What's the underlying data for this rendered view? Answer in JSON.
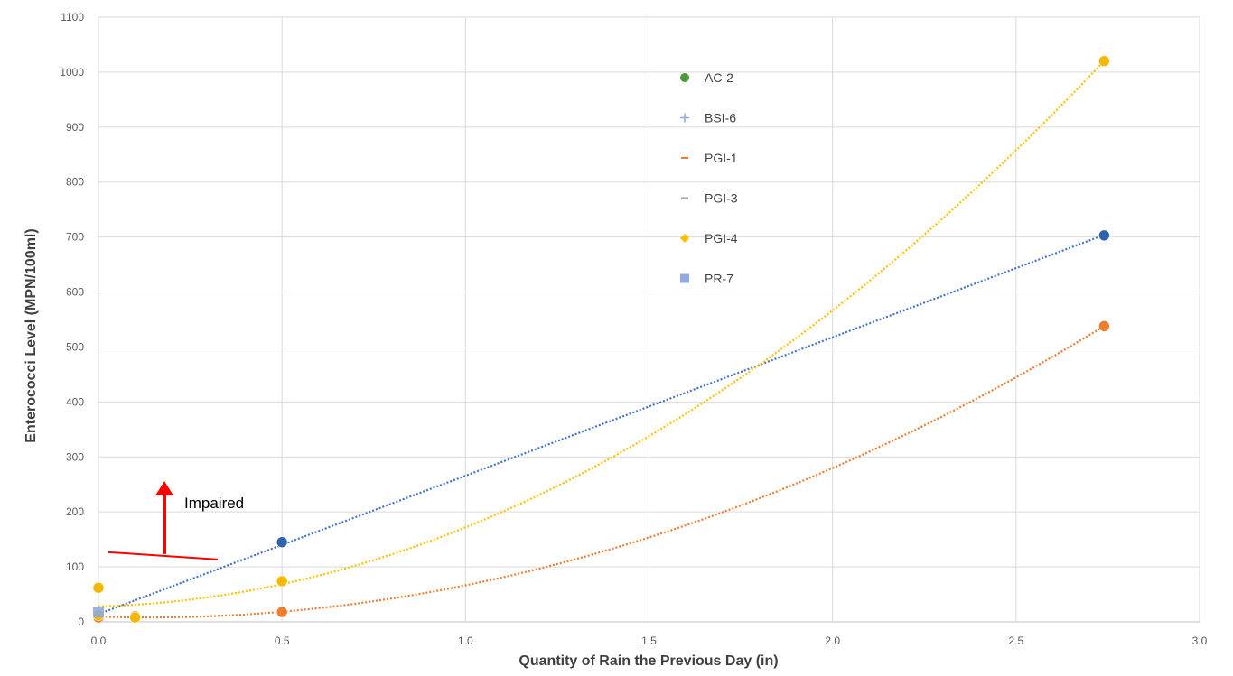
{
  "chart_data": {
    "type": "scatter",
    "xlabel": "Quantity of Rain the Previous Day (in)",
    "ylabel": "Enterococci Level (MPN/100ml)",
    "xlim": [
      0,
      3.0
    ],
    "ylim": [
      0,
      1100
    ],
    "x_ticks": [
      "0.0",
      "0.5",
      "1.0",
      "1.5",
      "2.0",
      "2.5",
      "3.0"
    ],
    "x_tick_values": [
      0,
      0.5,
      1.0,
      1.5,
      2.0,
      2.5,
      3.0
    ],
    "y_ticks": [
      "0",
      "100",
      "200",
      "300",
      "400",
      "500",
      "600",
      "700",
      "800",
      "900",
      "1000",
      "1100"
    ],
    "y_tick_values": [
      0,
      100,
      200,
      300,
      400,
      500,
      600,
      700,
      800,
      900,
      1000,
      1100
    ],
    "grid": true,
    "legend_position": "top-center",
    "series": [
      {
        "name": "AC-2",
        "marker": "circle",
        "color": "#4e9a3a",
        "points": []
      },
      {
        "name": "BSI-6",
        "marker": "plus",
        "color": "#8faadc",
        "points": [
          [
            0.0,
            10
          ],
          [
            0.5,
            145
          ],
          [
            2.74,
            703
          ]
        ],
        "point_color": "#2e64ad",
        "trend": {
          "kind": "linear",
          "color": "#4472c4"
        }
      },
      {
        "name": "PGI-1",
        "marker": "dash",
        "color": "#ed7d31",
        "points": [
          [
            0.0,
            8
          ],
          [
            0.1,
            10
          ],
          [
            0.5,
            18
          ],
          [
            2.74,
            538
          ]
        ],
        "trend": {
          "kind": "poly2",
          "color": "#ed7d31"
        }
      },
      {
        "name": "PGI-3",
        "marker": "dash",
        "color": "#a5a5a5",
        "points": []
      },
      {
        "name": "PGI-4",
        "marker": "diamond",
        "color": "#ffc000",
        "points": [
          [
            0.0,
            62
          ],
          [
            0.0,
            12
          ],
          [
            0.1,
            8
          ],
          [
            0.5,
            74
          ],
          [
            2.74,
            1020
          ]
        ],
        "point_color": "#f5b800",
        "trend": {
          "kind": "poly2",
          "color": "#ffc000"
        }
      },
      {
        "name": "PR-7",
        "marker": "square",
        "color": "#8faadc",
        "points": [
          [
            0.0,
            18
          ]
        ]
      }
    ],
    "annotations": [
      {
        "text": "Impaired",
        "color": "#ff0000",
        "threshold_y": 130
      }
    ]
  }
}
